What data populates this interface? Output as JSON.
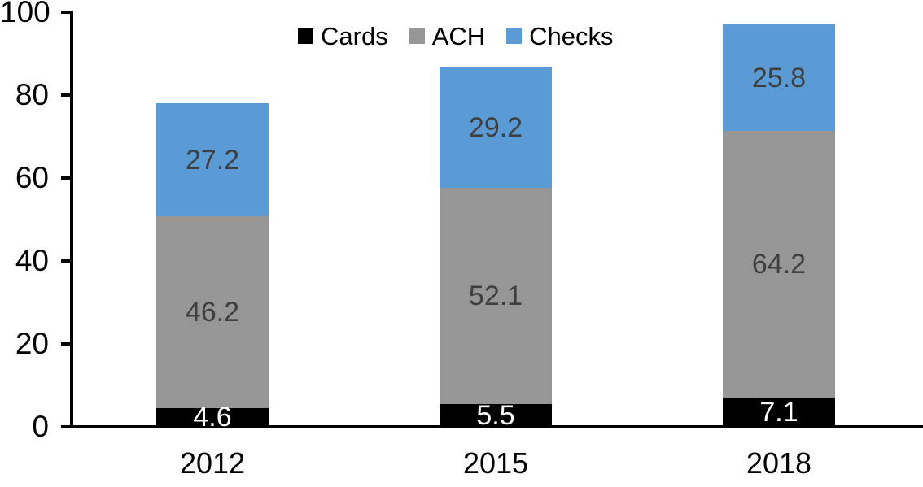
{
  "chart_data": {
    "type": "bar",
    "stacked": true,
    "title": "",
    "categories": [
      "2012",
      "2015",
      "2018"
    ],
    "series": [
      {
        "name": "Cards",
        "color": "#000000",
        "label_color": "#ffffff",
        "values": [
          4.6,
          5.5,
          7.1
        ]
      },
      {
        "name": "ACH",
        "color": "#969696",
        "label_color": "#3f3f3f",
        "values": [
          46.2,
          52.1,
          64.2
        ]
      },
      {
        "name": "Checks",
        "color": "#5b9bd5",
        "label_color": "#3f3f3f",
        "values": [
          27.2,
          29.2,
          25.8
        ]
      }
    ],
    "totals": [
      78.0,
      86.8,
      97.1
    ],
    "ylim": [
      0,
      100
    ],
    "yticks": [
      0,
      20,
      40,
      60,
      80,
      100
    ],
    "grid": false,
    "legend_position": "top",
    "legend_entries": [
      "Cards",
      "ACH",
      "Checks"
    ],
    "axis_color": "#000000",
    "background_color": "#ffffff"
  }
}
